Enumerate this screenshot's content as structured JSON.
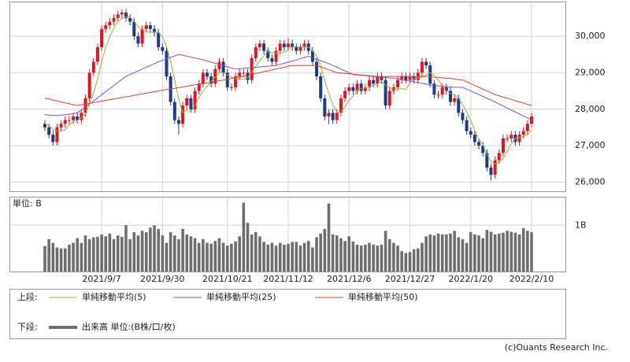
{
  "chart_data": [
    {
      "type": "candlestick",
      "categories": [
        null,
        null,
        null,
        null,
        null,
        null,
        null,
        null,
        null,
        null,
        null,
        null,
        null,
        null,
        "2021/9/7",
        null,
        null,
        null,
        null,
        null,
        null,
        null,
        null,
        null,
        null,
        null,
        null,
        null,
        null,
        "2021/9/30",
        null,
        null,
        null,
        null,
        null,
        null,
        null,
        null,
        null,
        null,
        null,
        null,
        null,
        null,
        null,
        "2021/10/21",
        null,
        null,
        null,
        null,
        null,
        null,
        null,
        null,
        null,
        null,
        null,
        null,
        null,
        null,
        "2021/11/12",
        null,
        null,
        null,
        null,
        null,
        null,
        null,
        null,
        null,
        null,
        null,
        null,
        null,
        null,
        "2021/12/6",
        null,
        null,
        null,
        null,
        null,
        null,
        null,
        null,
        null,
        null,
        null,
        null,
        null,
        null,
        "2021/12/27",
        null,
        null,
        null,
        null,
        null,
        null,
        null,
        null,
        null,
        null,
        null,
        null,
        null,
        null,
        "2022/1/20",
        null,
        null,
        null,
        null,
        null,
        null,
        null,
        null,
        null,
        null,
        null,
        null,
        null,
        null,
        "2022/2/10"
      ],
      "open": [
        27600,
        27500,
        27300,
        27100,
        27500,
        27600,
        27700,
        27700,
        27800,
        27700,
        27900,
        28300,
        29000,
        29300,
        29700,
        30200,
        30300,
        30400,
        30500,
        30600,
        30650,
        30500,
        30400,
        30000,
        29800,
        30200,
        30300,
        30200,
        30100,
        29700,
        29600,
        28900,
        28200,
        27700,
        27600,
        28100,
        28300,
        28000,
        28500,
        28700,
        29000,
        28900,
        28700,
        29100,
        29300,
        29000,
        28600,
        28600,
        28900,
        29000,
        29000,
        28800,
        29400,
        29700,
        29800,
        29600,
        29400,
        29300,
        29600,
        29800,
        29700,
        29800,
        29700,
        29600,
        29700,
        29800,
        29600,
        29300,
        28900,
        28300,
        27800,
        27900,
        27700,
        27900,
        28300,
        28500,
        28600,
        28500,
        28700,
        28500,
        28600,
        28800,
        28700,
        28900,
        28800,
        28100,
        28500,
        28600,
        28800,
        28900,
        28800,
        28900,
        28800,
        29000,
        29300,
        29200,
        28700,
        28400,
        28400,
        28600,
        28500,
        28200,
        28300,
        27900,
        27700,
        27400,
        27300,
        27100,
        27000,
        26800,
        26400,
        26200,
        26600,
        26800,
        27200,
        27200,
        27300,
        27100,
        27300,
        27400,
        27600
      ],
      "high": [
        27700,
        27600,
        27400,
        27600,
        27700,
        27800,
        27800,
        27900,
        27900,
        28000,
        28400,
        29100,
        29400,
        29800,
        30300,
        30400,
        30500,
        30600,
        30700,
        30750,
        30750,
        30600,
        30500,
        30100,
        30300,
        30400,
        30400,
        30300,
        30200,
        29800,
        29700,
        29000,
        28300,
        27800,
        28200,
        28400,
        28400,
        28600,
        28800,
        29100,
        29100,
        29000,
        29200,
        29400,
        29400,
        29100,
        28700,
        29000,
        29100,
        29100,
        29100,
        29500,
        29800,
        29900,
        29900,
        29700,
        29500,
        29700,
        29900,
        29900,
        29950,
        29900,
        29800,
        29800,
        29900,
        29900,
        29700,
        29400,
        29000,
        28400,
        28000,
        28000,
        28000,
        28400,
        28600,
        28700,
        28700,
        28800,
        28800,
        28700,
        28900,
        28900,
        29000,
        29000,
        28900,
        28600,
        28700,
        28900,
        29000,
        29000,
        29000,
        29000,
        29100,
        29400,
        29400,
        29300,
        28800,
        28500,
        28700,
        28700,
        28600,
        28400,
        28400,
        28000,
        27800,
        27500,
        27400,
        27200,
        27100,
        26900,
        26500,
        26700,
        26900,
        27300,
        27300,
        27400,
        27400,
        27400,
        27500,
        27700,
        27900
      ],
      "low": [
        27400,
        27200,
        27000,
        27000,
        27400,
        27500,
        27600,
        27600,
        27600,
        27600,
        27800,
        28200,
        28900,
        29200,
        29600,
        30100,
        30200,
        30300,
        30400,
        30500,
        30400,
        30300,
        29900,
        29700,
        29700,
        30100,
        30100,
        30000,
        29600,
        29500,
        28800,
        28100,
        27600,
        27300,
        27500,
        28000,
        27900,
        27900,
        28400,
        28600,
        28800,
        28600,
        28600,
        29000,
        28900,
        28500,
        28500,
        28500,
        28800,
        28900,
        28700,
        28700,
        29300,
        29600,
        29500,
        29300,
        29200,
        29200,
        29500,
        29600,
        29600,
        29600,
        29500,
        29500,
        29600,
        29500,
        29200,
        28800,
        28200,
        27700,
        27600,
        27600,
        27600,
        27800,
        28200,
        28400,
        28400,
        28400,
        28400,
        28400,
        28500,
        28600,
        28600,
        28700,
        28000,
        28000,
        28400,
        28500,
        28700,
        28700,
        28700,
        28700,
        28700,
        28900,
        29100,
        28600,
        28300,
        28300,
        28300,
        28400,
        28100,
        28100,
        27800,
        27600,
        27300,
        27200,
        27000,
        26900,
        26700,
        26300,
        26050,
        26100,
        26500,
        26700,
        27100,
        27100,
        27000,
        27000,
        27200,
        27300,
        27500
      ],
      "close": [
        27500,
        27300,
        27100,
        27500,
        27600,
        27700,
        27700,
        27800,
        27700,
        27900,
        28300,
        29000,
        29300,
        29700,
        30200,
        30300,
        30400,
        30500,
        30600,
        30650,
        30500,
        30400,
        30000,
        29800,
        30200,
        30300,
        30200,
        30100,
        29700,
        29600,
        28900,
        28200,
        27700,
        27600,
        28100,
        28300,
        28000,
        28500,
        28700,
        29000,
        28900,
        28700,
        29100,
        29300,
        29000,
        28600,
        28600,
        28900,
        29000,
        29000,
        28800,
        29400,
        29700,
        29800,
        29600,
        29400,
        29300,
        29600,
        29800,
        29700,
        29800,
        29700,
        29600,
        29700,
        29800,
        29600,
        29300,
        28900,
        28300,
        27800,
        27900,
        27700,
        27900,
        28300,
        28500,
        28600,
        28500,
        28700,
        28500,
        28600,
        28800,
        28700,
        28900,
        28800,
        28100,
        28500,
        28600,
        28800,
        28900,
        28800,
        28900,
        28800,
        29000,
        29300,
        29200,
        28700,
        28400,
        28400,
        28600,
        28500,
        28200,
        28300,
        27900,
        27700,
        27400,
        27300,
        27100,
        27000,
        26800,
        26400,
        26200,
        26600,
        26800,
        27200,
        27200,
        27300,
        27100,
        27300,
        27400,
        27600,
        27800
      ],
      "up_color": "#e5141e",
      "down_color": "#1d3a8c",
      "series": [
        {
          "name": "単純移動平均(5)",
          "color": "#9ab52a",
          "values": [
            27600,
            27550,
            27450,
            27400,
            27400,
            27440,
            27580,
            27660,
            27700,
            27760,
            27880,
            28140,
            28440,
            28840,
            29300,
            29700,
            30000,
            30220,
            30400,
            30490,
            30530,
            30530,
            30410,
            30270,
            30180,
            30140,
            30100,
            30120,
            30100,
            29980,
            29720,
            29300,
            28800,
            28260,
            27900,
            27980,
            27940,
            28100,
            28320,
            28500,
            28620,
            28760,
            28880,
            29000,
            29000,
            28940,
            28880,
            28840,
            28820,
            28820,
            28860,
            29020,
            29180,
            29340,
            29460,
            29580,
            29560,
            29540,
            29540,
            29560,
            29640,
            29720,
            29720,
            29720,
            29720,
            29700,
            29600,
            29460,
            29180,
            28780,
            28440,
            28120,
            27920,
            27920,
            28060,
            28240,
            28360,
            28520,
            28560,
            28580,
            28620,
            28660,
            28700,
            28760,
            28660,
            28600,
            28540,
            28560,
            28560,
            28540,
            28720,
            28840,
            28860,
            28880,
            28940,
            29000,
            28920,
            28800,
            28640,
            28520,
            28420,
            28400,
            28300,
            28120,
            27920,
            27680,
            27420,
            27180,
            27020,
            26760,
            26560,
            26500,
            26520,
            26640,
            26840,
            27060,
            27200,
            27220,
            27240,
            27300,
            27420
          ]
        },
        {
          "name": "単純移動平均(25)",
          "color": "#8a4fd8",
          "values": [
            27850,
            27840,
            27830,
            27830,
            27840,
            27850,
            27860,
            27880,
            27900,
            27980,
            28060,
            28140,
            28220,
            28310,
            28400,
            28480,
            28560,
            28650,
            28730,
            28820,
            28900,
            28950,
            29000,
            29050,
            29100,
            29150,
            29200,
            29250,
            29300,
            29340,
            29380,
            29420,
            29460,
            29500,
            29480,
            29450,
            29430,
            29400,
            29380,
            29350,
            29320,
            29290,
            29260,
            29230,
            29200,
            29160,
            29130,
            29100,
            29110,
            29120,
            29130,
            29140,
            29150,
            29160,
            29170,
            29180,
            29190,
            29200,
            29230,
            29260,
            29290,
            29320,
            29350,
            29390,
            29420,
            29450,
            29410,
            29370,
            29330,
            29290,
            29250,
            29200,
            29150,
            29100,
            29050,
            29000,
            28950,
            28940,
            28930,
            28920,
            28910,
            28900,
            28890,
            28880,
            28870,
            28860,
            28850,
            28830,
            28810,
            28790,
            28770,
            28750,
            28730,
            28710,
            28690,
            28670,
            28650,
            28640,
            28630,
            28620,
            28610,
            28600,
            28600,
            28600,
            28550,
            28500,
            28450,
            28400,
            28350,
            28300,
            28250,
            28200,
            28140,
            28090,
            28030,
            27980,
            27920,
            27870,
            27810,
            27760,
            27700
          ]
        },
        {
          "name": "単純移動平均(50)",
          "color": "#e8402a",
          "values": [
            28300,
            28280,
            28250,
            28230,
            28200,
            28170,
            28150,
            28120,
            28100,
            28120,
            28140,
            28160,
            28180,
            28200,
            28220,
            28240,
            28260,
            28280,
            28300,
            28320,
            28340,
            28360,
            28380,
            28400,
            28420,
            28440,
            28460,
            28480,
            28500,
            28520,
            28540,
            28560,
            28570,
            28590,
            28610,
            28630,
            28650,
            28670,
            28690,
            28700,
            28720,
            28740,
            28760,
            28780,
            28800,
            28820,
            28840,
            28860,
            28880,
            28900,
            28930,
            28950,
            28980,
            29000,
            29030,
            29050,
            29080,
            29100,
            29130,
            29150,
            29180,
            29200,
            29200,
            29200,
            29200,
            29200,
            29200,
            29200,
            29160,
            29120,
            29080,
            29040,
            29000,
            28990,
            28980,
            28970,
            28960,
            28950,
            28940,
            28930,
            28920,
            28910,
            28900,
            28900,
            28900,
            28900,
            28900,
            28900,
            28900,
            28900,
            28900,
            28900,
            28900,
            28900,
            28900,
            28890,
            28880,
            28870,
            28860,
            28850,
            28840,
            28830,
            28810,
            28800,
            28750,
            28700,
            28650,
            28600,
            28550,
            28500,
            28450,
            28400,
            28370,
            28330,
            28300,
            28270,
            28230,
            28200,
            28170,
            28130,
            28100
          ]
        }
      ],
      "ylim": [
        25750,
        30930
      ],
      "yticks": [
        {
          "value": 26000,
          "label": "26,000"
        },
        {
          "value": 27000,
          "label": "27,000"
        },
        {
          "value": 28000,
          "label": "28,000"
        },
        {
          "value": 29000,
          "label": "29,000"
        },
        {
          "value": 30000,
          "label": "30,000"
        }
      ],
      "grid": true,
      "legend_title": "上段:"
    },
    {
      "type": "bar",
      "unit_label": "単位: B",
      "series": [
        {
          "name": "出来高 単位:(B株/口/枚)",
          "color": "#6e6e6e",
          "values": [
            0.55,
            0.7,
            0.62,
            0.52,
            0.5,
            0.5,
            0.58,
            0.62,
            0.72,
            0.62,
            0.78,
            0.7,
            0.74,
            0.75,
            0.8,
            0.76,
            0.82,
            0.7,
            0.78,
            0.75,
            1.0,
            0.7,
            0.85,
            0.78,
            0.88,
            0.85,
            0.95,
            1.0,
            0.92,
            0.78,
            0.62,
            0.85,
            0.78,
            0.7,
            0.92,
            0.8,
            0.76,
            0.72,
            0.62,
            0.7,
            0.62,
            0.6,
            0.66,
            0.72,
            0.62,
            0.56,
            0.6,
            0.65,
            0.76,
            1.49,
            1.05,
            0.8,
            0.85,
            0.76,
            0.64,
            0.58,
            0.62,
            0.56,
            0.62,
            0.58,
            0.6,
            0.64,
            0.64,
            0.56,
            0.62,
            0.66,
            0.52,
            0.74,
            0.82,
            0.92,
            1.47,
            0.8,
            0.78,
            0.72,
            0.66,
            0.76,
            0.65,
            0.58,
            0.56,
            0.58,
            0.62,
            0.58,
            0.56,
            0.58,
            0.88,
            0.7,
            0.62,
            0.56,
            0.44,
            0.4,
            0.42,
            0.48,
            0.5,
            0.62,
            0.76,
            0.8,
            0.78,
            0.82,
            0.8,
            0.8,
            0.82,
            0.88,
            0.74,
            0.7,
            0.62,
            0.85,
            0.8,
            0.78,
            0.72,
            0.9,
            0.86,
            0.8,
            0.82,
            0.84,
            0.88,
            0.86,
            0.84,
            0.8,
            0.94,
            0.88,
            0.85
          ]
        }
      ],
      "ylim": [
        0,
        1.6
      ],
      "yticks": [
        {
          "value": 1,
          "label": "1B"
        }
      ],
      "grid": true,
      "legend_title": "下段:"
    }
  ],
  "credit": "(c)Ouants Research Inc."
}
